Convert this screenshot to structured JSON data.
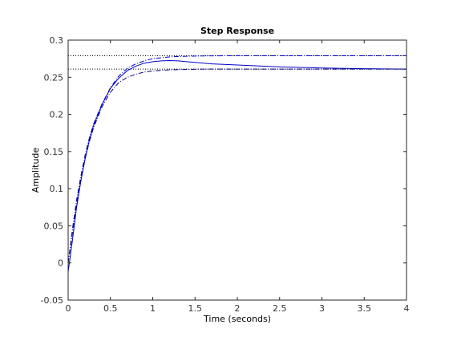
{
  "chart_data": {
    "type": "line",
    "title": "Step Response",
    "xlabel": "Time (seconds)",
    "ylabel": "Amplitude",
    "xlim": [
      0,
      4
    ],
    "ylim": [
      -0.05,
      0.3
    ],
    "xticks": [
      0,
      0.5,
      1,
      1.5,
      2,
      2.5,
      3,
      3.5,
      4
    ],
    "xtick_labels": [
      "0",
      "0.5",
      "1",
      "1.5",
      "2",
      "2.5",
      "3",
      "3.5",
      "4"
    ],
    "yticks": [
      -0.05,
      0,
      0.05,
      0.1,
      0.15,
      0.2,
      0.25,
      0.3
    ],
    "ytick_labels": [
      "-0.05",
      "0",
      "0.05",
      "0.1",
      "0.15",
      "0.2",
      "0.25",
      "0.3"
    ],
    "grid": false,
    "reference_lines": [
      {
        "y": 0.279,
        "style": "dotted",
        "color": "#000000"
      },
      {
        "y": 0.261,
        "style": "dotted",
        "color": "#000000"
      }
    ],
    "series": [
      {
        "style": "solid",
        "color": "#0000cc",
        "x": [
          0,
          0.05,
          0.1,
          0.15,
          0.2,
          0.25,
          0.3,
          0.4,
          0.5,
          0.6,
          0.7,
          0.8,
          0.9,
          1.0,
          1.1,
          1.2,
          1.3,
          1.4,
          1.5,
          1.7,
          2.0,
          2.5,
          3.0,
          3.5,
          4.0
        ],
        "y": [
          -0.012,
          0.03,
          0.075,
          0.11,
          0.14,
          0.165,
          0.185,
          0.213,
          0.235,
          0.249,
          0.259,
          0.265,
          0.269,
          0.271,
          0.272,
          0.2725,
          0.272,
          0.271,
          0.27,
          0.268,
          0.2665,
          0.264,
          0.2625,
          0.2615,
          0.261
        ]
      },
      {
        "style": "dashdot",
        "color": "#0000cc",
        "x": [
          0,
          0.05,
          0.1,
          0.15,
          0.2,
          0.25,
          0.3,
          0.4,
          0.5,
          0.6,
          0.7,
          0.8,
          0.9,
          1.0,
          1.2,
          1.4,
          1.6,
          2.0,
          2.5,
          3.0,
          3.5,
          4.0
        ],
        "y": [
          0.0,
          0.045,
          0.085,
          0.117,
          0.145,
          0.168,
          0.187,
          0.214,
          0.236,
          0.252,
          0.262,
          0.268,
          0.272,
          0.275,
          0.2775,
          0.2783,
          0.2787,
          0.279,
          0.279,
          0.279,
          0.279,
          0.279
        ]
      },
      {
        "style": "dashdot",
        "color": "#000080",
        "x": [
          0,
          0.05,
          0.1,
          0.15,
          0.2,
          0.25,
          0.3,
          0.4,
          0.5,
          0.6,
          0.7,
          0.8,
          0.9,
          1.0,
          1.2,
          1.4,
          1.6,
          2.0,
          2.5,
          3.0,
          3.5,
          4.0
        ],
        "y": [
          0.0,
          0.04,
          0.08,
          0.112,
          0.14,
          0.163,
          0.182,
          0.21,
          0.23,
          0.243,
          0.25,
          0.254,
          0.257,
          0.2585,
          0.26,
          0.2605,
          0.261,
          0.261,
          0.261,
          0.261,
          0.261,
          0.261
        ]
      }
    ]
  }
}
